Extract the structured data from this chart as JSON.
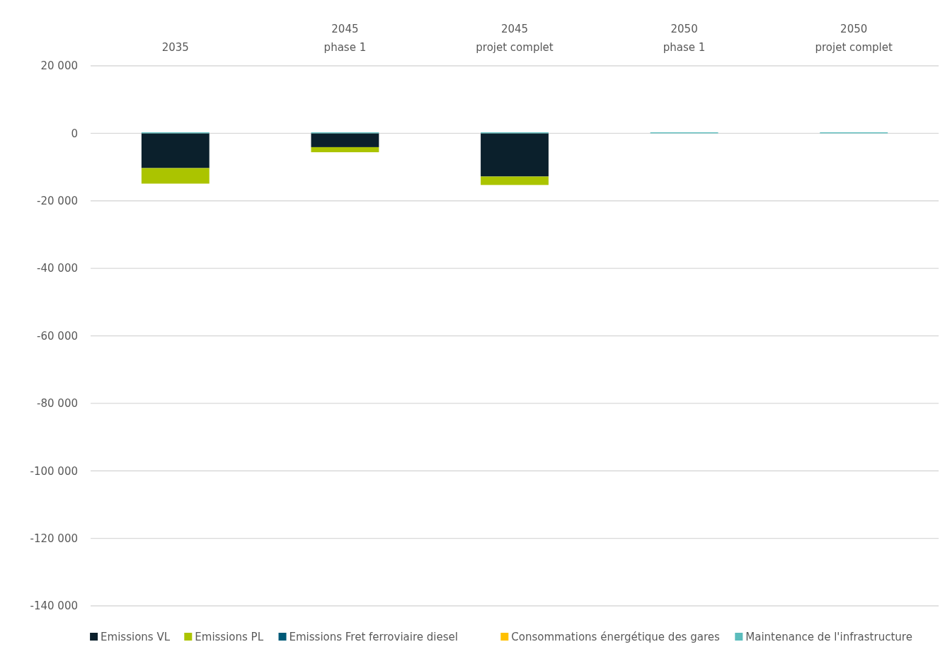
{
  "chart_data": {
    "type": "bar",
    "stacked": true,
    "categories": [
      "2035",
      "2045\nphase 1",
      "2045\nprojet complet",
      "2050\nphase 1",
      "2050\nprojet complet"
    ],
    "series": [
      {
        "name": "Emissions VL",
        "color": "#0b202c",
        "values": [
          -10300,
          -4100,
          -12800,
          0,
          0
        ]
      },
      {
        "name": "Emissions PL",
        "color": "#abc400",
        "values": [
          -4600,
          -1500,
          -2500,
          0,
          0
        ]
      },
      {
        "name": "Emissions Fret ferroviaire diesel",
        "color": "#005a78",
        "values": [
          0,
          0,
          0,
          0,
          0
        ]
      },
      {
        "name": "Consommations énergétique des gares",
        "color": "#ffc000",
        "values": [
          0,
          0,
          0,
          0,
          0
        ]
      },
      {
        "name": "Maintenance de l'infrastructure",
        "color": "#5bbcbc",
        "values": [
          300,
          300,
          300,
          300,
          300
        ]
      }
    ],
    "ylim": [
      -140000,
      20000
    ],
    "yticks": [
      {
        "value": 20000,
        "label": "20 000"
      },
      {
        "value": 0,
        "label": "0"
      },
      {
        "value": -20000,
        "label": "-20 000"
      },
      {
        "value": -40000,
        "label": "-40 000"
      },
      {
        "value": -60000,
        "label": "-60 000"
      },
      {
        "value": -80000,
        "label": "-80 000"
      },
      {
        "value": -100000,
        "label": "-100 000"
      },
      {
        "value": -120000,
        "label": "-120 000"
      },
      {
        "value": -140000,
        "label": "-140 000"
      }
    ],
    "grid": "y",
    "legend": "bottom"
  }
}
